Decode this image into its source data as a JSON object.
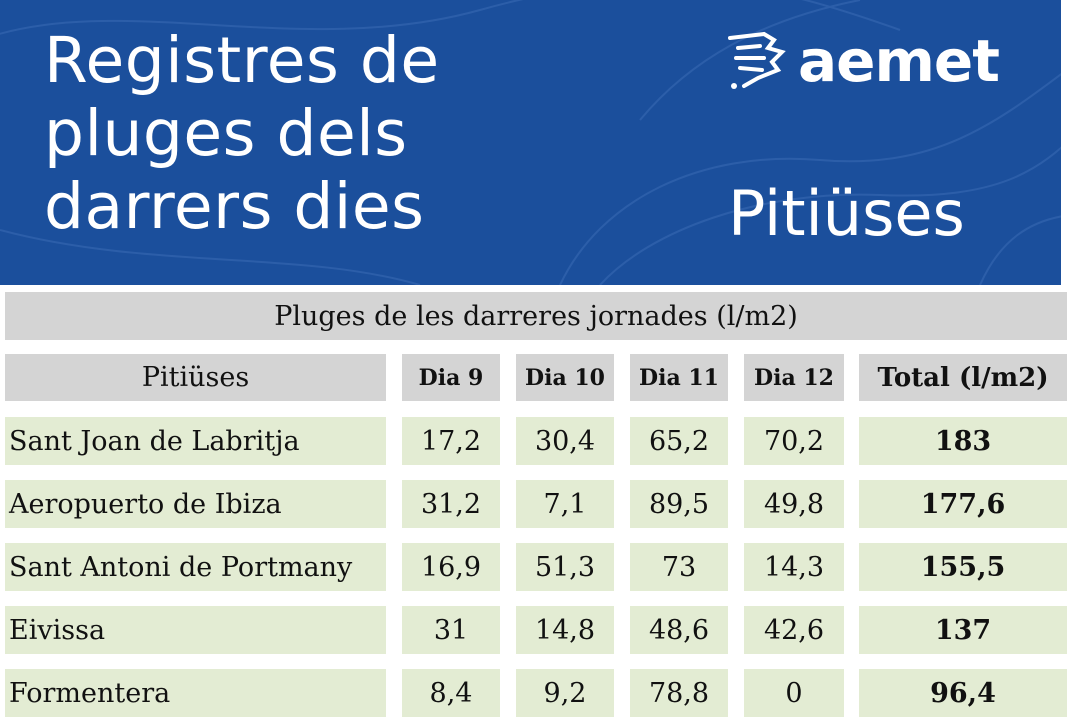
{
  "banner": {
    "title_lines": [
      "Registres de",
      "pluges dels",
      "darrers dies"
    ],
    "logo_text": "aemet",
    "logo_icon": "aemet-logo-icon",
    "region": "Pitiüses",
    "background_color": "#1b4f9c"
  },
  "table": {
    "caption": "Pluges de les darreres jornades (l/m2)",
    "headers": [
      "Pitiüses",
      "Dia 9",
      "Dia 10",
      "Dia 11",
      "Dia 12",
      "Total (l/m2)"
    ],
    "rows": [
      {
        "station": "Sant Joan de Labritja",
        "values": [
          "17,2",
          "30,4",
          "65,2",
          "70,2"
        ],
        "total": "183"
      },
      {
        "station": "Aeropuerto de Ibiza",
        "values": [
          "31,2",
          "7,1",
          "89,5",
          "49,8"
        ],
        "total": "177,6"
      },
      {
        "station": "Sant Antoni de Portmany",
        "values": [
          "16,9",
          "51,3",
          "73",
          "14,3"
        ],
        "total": "155,5"
      },
      {
        "station": "Eivissa",
        "values": [
          "31",
          "14,8",
          "48,6",
          "42,6"
        ],
        "total": "137"
      },
      {
        "station": "Formentera",
        "values": [
          "8,4",
          "9,2",
          "78,8",
          "0"
        ],
        "total": "96,4"
      }
    ],
    "header_color": "#d4d4d4",
    "row_color": "#e3ecd3"
  }
}
